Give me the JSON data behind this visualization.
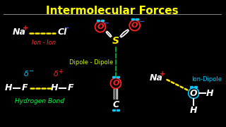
{
  "title": "Intermolecular Forces",
  "title_color": "#FFFF00",
  "bg_color": "#000000",
  "separator_color": "#888888",
  "label_ion_ion": "Ion - Ion",
  "label_dipole": "Dipole - Dipole",
  "label_hbond": "Hydrogen Bond",
  "label_ion_dipole": "Ion-Dipole",
  "label_color_ion": "#FF3333",
  "label_color_dipole": "#CCFF00",
  "label_color_hbond": "#00FF44",
  "label_color_iondipole": "#00CCFF",
  "white": "#FFFFFF",
  "yellow": "#FFEE00",
  "red": "#FF2222",
  "cyan": "#00CCFF",
  "blue": "#4466FF",
  "green": "#00DD44",
  "dark_green": "#009933"
}
